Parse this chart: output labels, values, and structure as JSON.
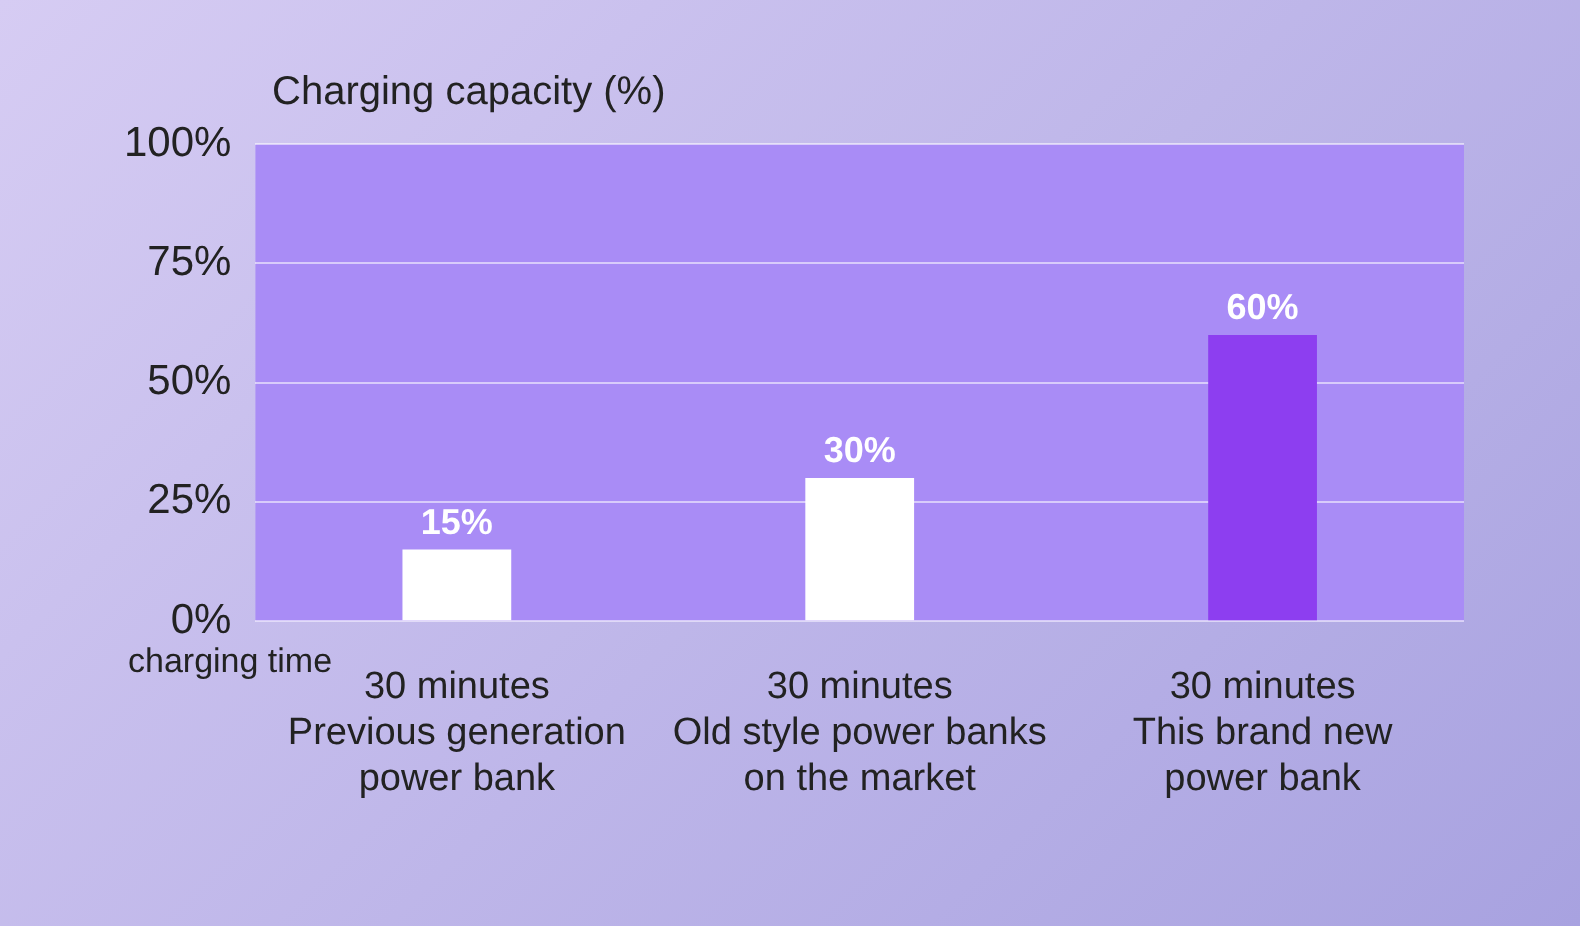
{
  "chart_data": {
    "type": "bar",
    "ylabel": "Charging capacity (%)",
    "xlabel": "charging time",
    "categories": [
      "30 minutes\nPrevious generation\npower bank",
      "30 minutes\nOld style power banks\non the market",
      "30 minutes\nThis brand new\npower bank"
    ],
    "values": [
      15,
      30,
      60
    ],
    "colors": [
      "#ffffff",
      "#ffffff",
      "#8d3ef0"
    ],
    "ylim": [
      0,
      100
    ],
    "yticks": [
      {
        "value": 0,
        "label": "0%"
      },
      {
        "value": 25,
        "label": "25%"
      },
      {
        "value": 50,
        "label": "50%"
      },
      {
        "value": 75,
        "label": "75%"
      },
      {
        "value": 100,
        "label": "100%"
      }
    ],
    "value_labels": [
      "15%",
      "30%",
      "60%"
    ],
    "grid": "y",
    "legend": false
  }
}
